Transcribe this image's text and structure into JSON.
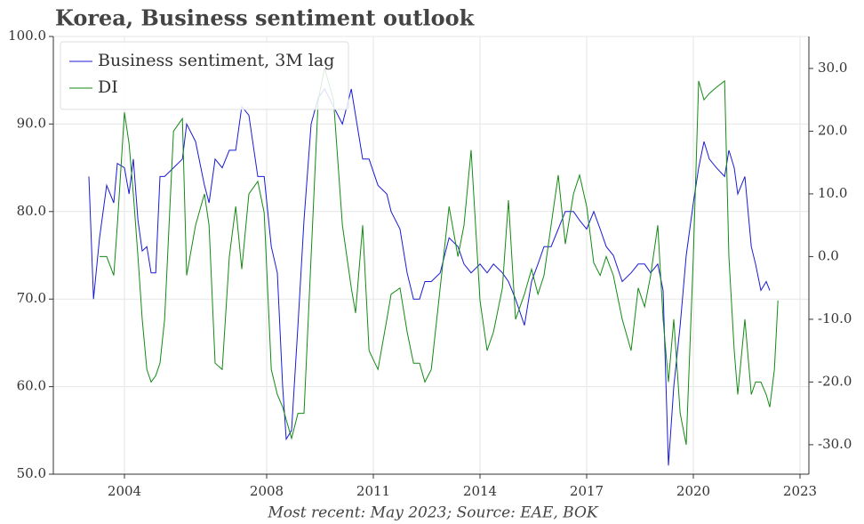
{
  "chart_data": {
    "type": "line",
    "title": "Korea, Business sentiment outlook",
    "footnote": "Most recent: May 2023; Source: EAE, BOK",
    "x": [
      2003.0,
      2003.13,
      2003.3,
      2003.5,
      2003.7,
      2003.8,
      2004.0,
      2004.13,
      2004.25,
      2004.38,
      2004.5,
      2004.63,
      2004.75,
      2004.88,
      2005.0,
      2005.13,
      2005.38,
      2005.63,
      2005.75,
      2006.0,
      2006.25,
      2006.38,
      2006.55,
      2006.75,
      2006.95,
      2007.13,
      2007.3,
      2007.5,
      2007.75,
      2007.93,
      2008.13,
      2008.3,
      2008.45,
      2008.55,
      2008.7,
      2008.88,
      2009.05,
      2009.25,
      2009.45,
      2009.63,
      2009.88,
      2010.13,
      2010.38,
      2010.5,
      2010.7,
      2010.88,
      2011.13,
      2011.38,
      2011.5,
      2011.75,
      2011.95,
      2012.13,
      2012.3,
      2012.45,
      2012.63,
      2012.88,
      2013.13,
      2013.38,
      2013.55,
      2013.75,
      2014.0,
      2014.2,
      2014.38,
      2014.63,
      2014.8,
      2015.0,
      2015.25,
      2015.45,
      2015.63,
      2015.8,
      2016.0,
      2016.2,
      2016.4,
      2016.63,
      2016.8,
      2017.0,
      2017.2,
      2017.38,
      2017.55,
      2017.75,
      2018.0,
      2018.25,
      2018.45,
      2018.63,
      2018.8,
      2019.0,
      2019.15,
      2019.3,
      2019.45,
      2019.63,
      2019.8,
      2020.0,
      2020.15,
      2020.3,
      2020.45,
      2020.65,
      2020.88,
      2021.0,
      2021.15,
      2021.25,
      2021.45,
      2021.63,
      2021.75,
      2021.9,
      2022.05,
      2022.15,
      2022.28,
      2022.38
    ],
    "series": [
      {
        "name": "Business sentiment, 3M lag",
        "color": "#1a1ad6",
        "axis": "y",
        "values": [
          84,
          70,
          77,
          83,
          81,
          85.5,
          85,
          82,
          86,
          79,
          75.5,
          76,
          73,
          73,
          84,
          84,
          85,
          86,
          90,
          88,
          83,
          81,
          86,
          85,
          87,
          87,
          92,
          91,
          84,
          84,
          76,
          73,
          60,
          54,
          55,
          67,
          79,
          90,
          93,
          94,
          92,
          90,
          94,
          91,
          86,
          86,
          83,
          82,
          80,
          78,
          73,
          70,
          70,
          72,
          72,
          73,
          77,
          76,
          74,
          73,
          74,
          73,
          74,
          73,
          72,
          70,
          67,
          72,
          74,
          76,
          76,
          78,
          80,
          80,
          79,
          78,
          80,
          78,
          76,
          75,
          72,
          73,
          74,
          74,
          73,
          74,
          71,
          51,
          60,
          67,
          75,
          81,
          85,
          88,
          86,
          85,
          84,
          87,
          85,
          82,
          84,
          76,
          74,
          71,
          72,
          71,
          null,
          null
        ]
      },
      {
        "name": "DI",
        "color": "#138a13",
        "axis": "y2",
        "values": [
          null,
          null,
          0,
          0,
          -3,
          5,
          23,
          18,
          10,
          0,
          -10,
          -18,
          -20,
          -19,
          -17,
          -10,
          20,
          22,
          -3,
          5,
          10,
          5,
          -17,
          -18,
          0,
          8,
          -2,
          10,
          12,
          7,
          -18,
          -22,
          -24,
          -26,
          -29,
          -25,
          -25,
          0,
          25,
          30,
          25,
          5,
          -5,
          -9,
          5,
          -15,
          -18,
          -10,
          -6,
          -5,
          -12,
          -17,
          -17,
          -20,
          -18,
          -5,
          8,
          0,
          5,
          17,
          -7,
          -15,
          -12,
          -5,
          9,
          -10,
          -6,
          -2,
          -6,
          -3,
          5,
          13,
          2,
          10,
          13,
          8,
          -1,
          -3,
          0,
          -3,
          -10,
          -15,
          -5,
          -8,
          -3,
          5,
          -10,
          -20,
          -10,
          -25,
          -30,
          0,
          28,
          25,
          26,
          27,
          28,
          0,
          -15,
          -22,
          -10,
          -22,
          -20,
          -20,
          -22,
          -24,
          -18,
          -7
        ]
      }
    ],
    "xlim": [
      2002,
      2023.25
    ],
    "xticks": [
      2004,
      2008,
      2011,
      2014,
      2017,
      2020,
      2023
    ],
    "ylim": [
      50,
      100
    ],
    "yticks": [
      {
        "value": 50,
        "label": "50.0"
      },
      {
        "value": 60,
        "label": "60.0"
      },
      {
        "value": 70,
        "label": "70.0"
      },
      {
        "value": 80,
        "label": "80.0"
      },
      {
        "value": 90,
        "label": "90.0"
      },
      {
        "value": 100,
        "label": "100.0"
      }
    ],
    "y2lim": [
      -34.7,
      35.1
    ],
    "y2ticks": [
      {
        "value": -30,
        "label": "-30.0"
      },
      {
        "value": -20,
        "label": "-20.0"
      },
      {
        "value": -10,
        "label": "-10.0"
      },
      {
        "value": 0,
        "label": "0.0"
      },
      {
        "value": 10,
        "label": "10.0"
      },
      {
        "value": 20,
        "label": "20.0"
      },
      {
        "value": 30,
        "label": "30.0"
      }
    ],
    "grid": true,
    "legend": "upper left"
  }
}
